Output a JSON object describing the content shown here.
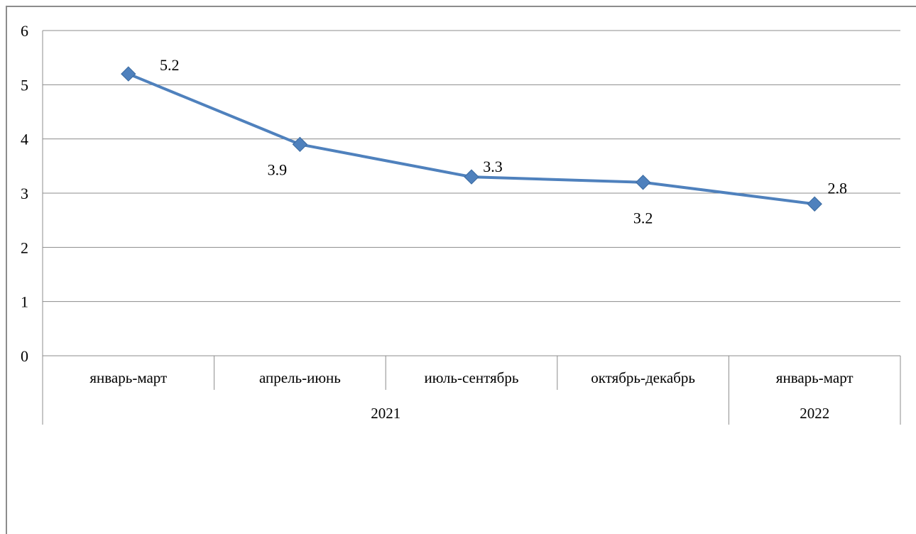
{
  "chart_data": {
    "type": "line",
    "title": "",
    "xlabel": "",
    "ylabel": "",
    "ylim": [
      0,
      6
    ],
    "yticks": [
      0,
      1,
      2,
      3,
      4,
      5,
      6
    ],
    "grid": true,
    "categories": [
      "январь-март",
      "апрель-июнь",
      "июль-сентябрь",
      "октябрь-декабрь",
      "январь-март"
    ],
    "groups": [
      {
        "label": "2021",
        "span": 4
      },
      {
        "label": "2022",
        "span": 1
      }
    ],
    "series": [
      {
        "color": "#4f81bd",
        "values": [
          5.2,
          3.9,
          3.3,
          3.2,
          2.8
        ]
      }
    ],
    "data_labels": [
      "5.2",
      "3.9",
      "3.3",
      "3.2",
      "2.8"
    ]
  }
}
